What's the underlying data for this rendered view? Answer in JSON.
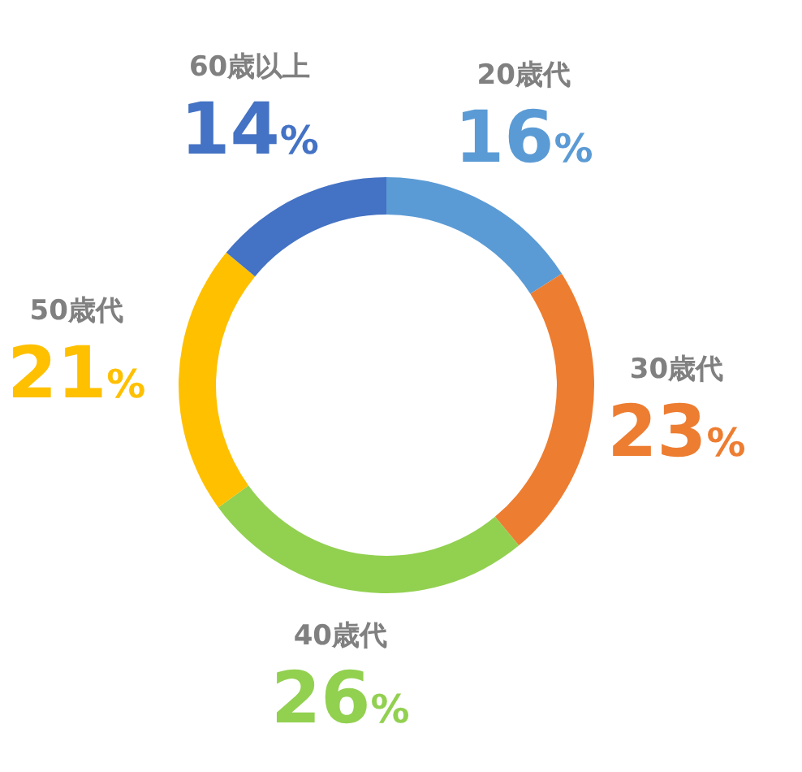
{
  "chart_data": {
    "type": "donut",
    "categories": [
      "20歳代",
      "30歳代",
      "40歳代",
      "50歳代",
      "60歳以上"
    ],
    "values": [
      16,
      23,
      26,
      21,
      14
    ],
    "colors": [
      "#5b9bd5",
      "#ed7d31",
      "#92d050",
      "#ffc000",
      "#4472c4"
    ],
    "value_labels": [
      "16%",
      "23%",
      "26%",
      "21%",
      "14%"
    ],
    "legend": false
  }
}
